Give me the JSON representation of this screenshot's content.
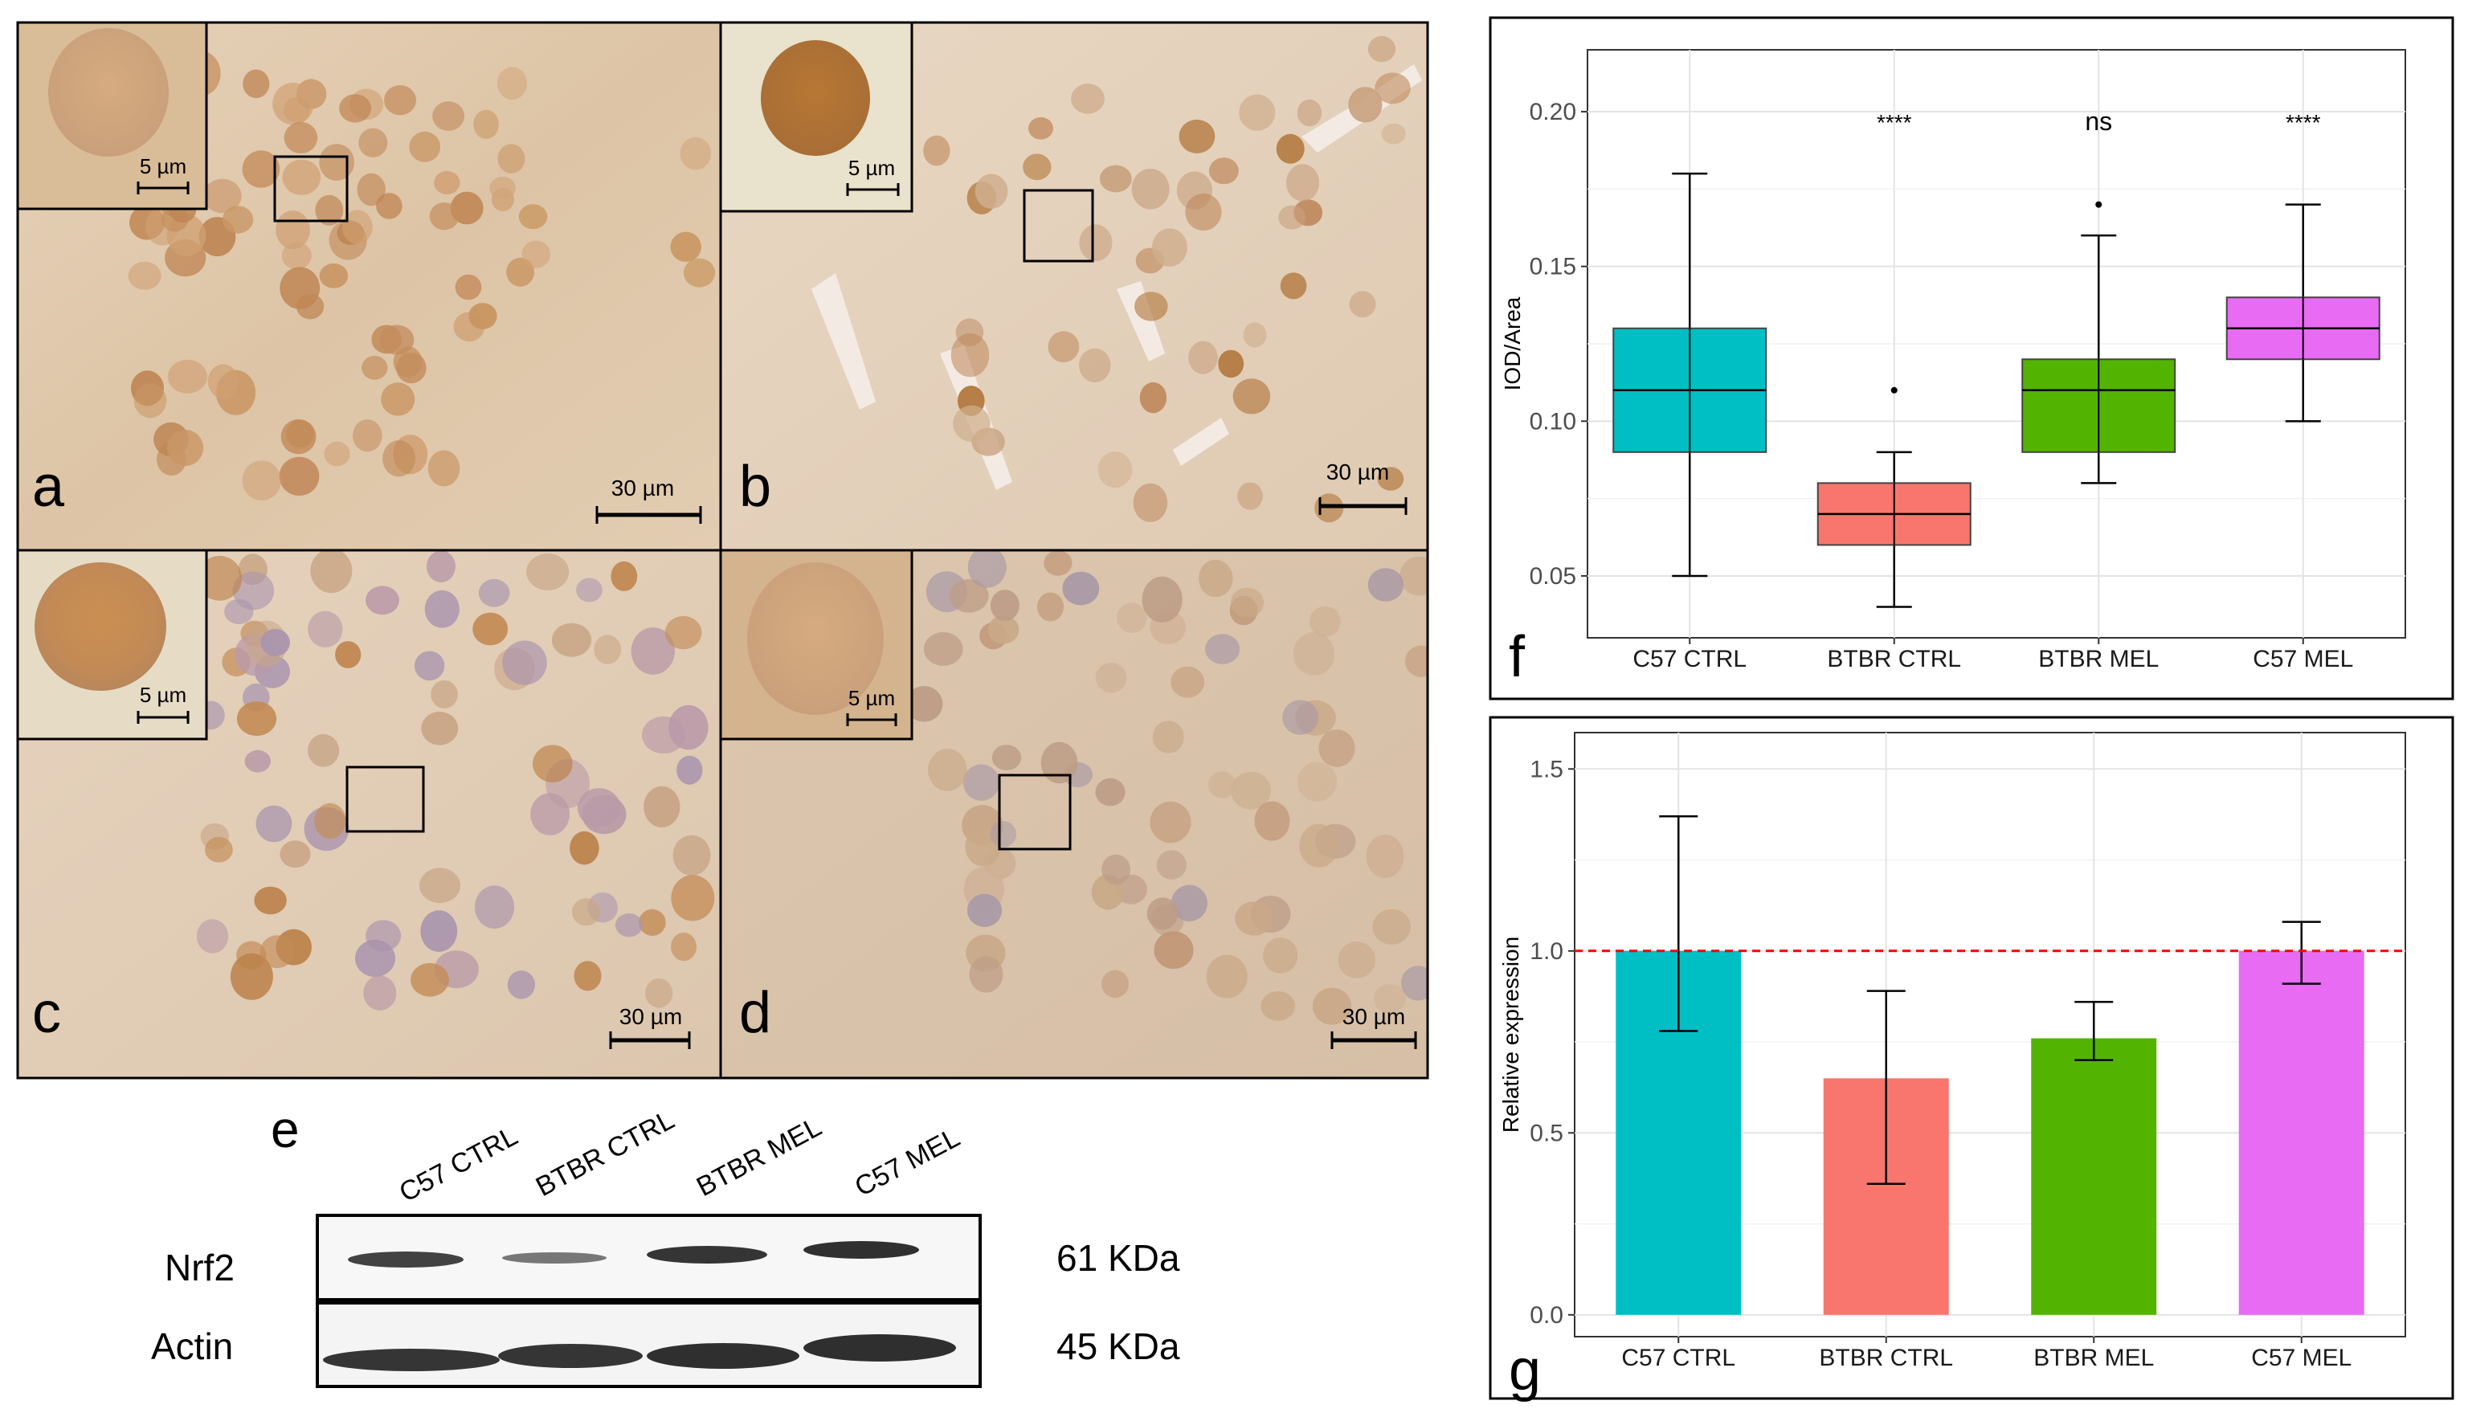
{
  "micrographs": [
    {
      "letter": "a",
      "scale_inset": "5 µm",
      "scale_main": "30 µm"
    },
    {
      "letter": "b",
      "scale_inset": "5 µm",
      "scale_main": "30 µm"
    },
    {
      "letter": "c",
      "scale_inset": "5 µm",
      "scale_main": "30 µm"
    },
    {
      "letter": "d",
      "scale_inset": "5 µm",
      "scale_main": "30 µm"
    }
  ],
  "western_blot": {
    "letter": "e",
    "lanes": [
      "C57 CTRL",
      "BTBR CTRL",
      "BTBR MEL",
      "C57 MEL"
    ],
    "rows": [
      {
        "protein": "Nrf2",
        "size": "61 KDa"
      },
      {
        "protein": "Actin",
        "size": "45 KDa"
      }
    ]
  },
  "colors": {
    "C57 CTRL": "#00BFC4",
    "BTBR CTRL": "#F8766D",
    "BTBR MEL": "#53B400",
    "C57 MEL": "#E76BF3",
    "reference_line": "#FF0000"
  },
  "chart_data": [
    {
      "type": "box",
      "panel_letter": "f",
      "title": "",
      "xlabel": "",
      "ylabel": "IOD/Area",
      "ylim": [
        0.03,
        0.22
      ],
      "yticks": [
        0.05,
        0.1,
        0.15,
        0.2
      ],
      "ytick_labels": [
        "0.05",
        "0.10",
        "0.15",
        "0.20"
      ],
      "grid": true,
      "categories": [
        "C57 CTRL",
        "BTBR CTRL",
        "BTBR MEL",
        "C57 MEL"
      ],
      "boxes": [
        {
          "category": "C57 CTRL",
          "whisker_low": 0.05,
          "q1": 0.09,
          "median": 0.11,
          "q3": 0.13,
          "whisker_high": 0.18,
          "outliers": []
        },
        {
          "category": "BTBR CTRL",
          "whisker_low": 0.04,
          "q1": 0.06,
          "median": 0.07,
          "q3": 0.08,
          "whisker_high": 0.09,
          "outliers": [
            0.11
          ]
        },
        {
          "category": "BTBR MEL",
          "whisker_low": 0.08,
          "q1": 0.09,
          "median": 0.11,
          "q3": 0.12,
          "whisker_high": 0.16,
          "outliers": [
            0.17
          ]
        },
        {
          "category": "C57 MEL",
          "whisker_low": 0.1,
          "q1": 0.12,
          "median": 0.13,
          "q3": 0.14,
          "whisker_high": 0.17,
          "outliers": []
        }
      ],
      "annotations": [
        "",
        "****",
        "ns",
        "****"
      ]
    },
    {
      "type": "bar",
      "panel_letter": "g",
      "title": "",
      "xlabel": "",
      "ylabel": "Relative expression",
      "ylim": [
        -0.06,
        1.6
      ],
      "yticks": [
        0.0,
        0.5,
        1.0,
        1.5
      ],
      "ytick_labels": [
        "0.0",
        "0.5",
        "1.0",
        "1.5"
      ],
      "grid": true,
      "categories": [
        "C57 CTRL",
        "BTBR CTRL",
        "BTBR MEL",
        "C57 MEL"
      ],
      "values": [
        1.0,
        0.65,
        0.76,
        1.0
      ],
      "error_low": [
        0.78,
        0.36,
        0.7,
        0.91
      ],
      "error_high": [
        1.37,
        0.89,
        0.86,
        1.08
      ],
      "reference_line": 1.0
    }
  ]
}
